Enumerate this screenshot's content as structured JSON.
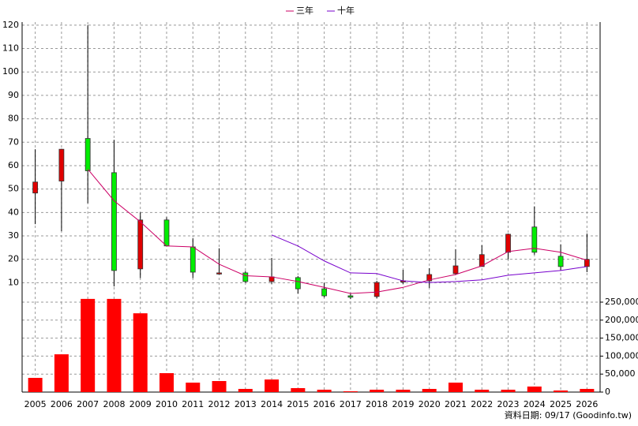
{
  "chart_data": [
    {
      "type": "candlestick",
      "categories": [
        "2005",
        "2006",
        "2007",
        "2008",
        "2009",
        "2010",
        "2011",
        "2012",
        "2013",
        "2014",
        "2015",
        "2016",
        "2017",
        "2018",
        "2019",
        "2020",
        "2021",
        "2022",
        "2023",
        "2024",
        "2025",
        "2026"
      ],
      "open": [
        48.3,
        53.4,
        71.6,
        57,
        15.9,
        36.8,
        25.3,
        13.9,
        14.2,
        10.5,
        12.2,
        7.4,
        4.4,
        4.1,
        10.5,
        10.8,
        13.9,
        16.9,
        23,
        33.8,
        21.3,
        16.9
      ],
      "high": [
        67,
        67.2,
        120,
        71,
        40,
        38,
        29,
        24.7,
        15,
        20.6,
        12.8,
        10,
        5.4,
        10.8,
        15.5,
        16.2,
        24.3,
        26,
        31,
        42.6,
        26.4,
        31
      ],
      "low": [
        35,
        32,
        44,
        8.4,
        12,
        25.7,
        12,
        13.5,
        10,
        9.5,
        5.4,
        3.7,
        3,
        3.4,
        9.5,
        7.8,
        13.5,
        17.6,
        20,
        22,
        15.2,
        14.5
      ],
      "close": [
        53,
        67,
        57.8,
        15.2,
        36.8,
        25.7,
        14.5,
        14.2,
        10.5,
        12.5,
        7.4,
        4.4,
        3.8,
        10.1,
        10.8,
        13.5,
        17.2,
        22,
        30.7,
        23,
        16.9,
        20
      ],
      "up_color": "#e00000",
      "down_color": "#00ee00",
      "lines": [
        {
          "name": "三年",
          "color": "#cc0066",
          "values": [
            null,
            null,
            58.5,
            45,
            36,
            25.7,
            25.3,
            17.9,
            13,
            12.5,
            10.5,
            8,
            5.4,
            6,
            8,
            11.2,
            13.5,
            17.2,
            23.3,
            24.7,
            23,
            19.6
          ]
        },
        {
          "name": "十年",
          "color": "#7700cc",
          "values": [
            null,
            null,
            null,
            null,
            null,
            null,
            null,
            null,
            null,
            30.4,
            25.7,
            19.3,
            14.2,
            13.9,
            10.8,
            10.1,
            10.5,
            11.2,
            13.2,
            14.2,
            15.2,
            16.9
          ]
        }
      ],
      "ylim": [
        1.7,
        121.3
      ],
      "yticks": [
        10,
        20,
        30,
        40,
        50,
        60,
        70,
        80,
        90,
        100,
        110,
        120
      ],
      "grid": true
    },
    {
      "type": "bar",
      "values": [
        39500,
        105000,
        259000,
        259000,
        219000,
        52600,
        26300,
        30700,
        8800,
        35000,
        11000,
        6600,
        2200,
        6600,
        6600,
        8800,
        26300,
        6600,
        6600,
        15400,
        4400,
        8800
      ],
      "color": "#ff0000",
      "ylim": [
        0,
        250000
      ],
      "yticks": [
        0,
        {
          "value": 50000,
          "label": "50,000"
        },
        {
          "value": 100000,
          "label": "100,000"
        },
        {
          "value": 150000,
          "label": "150,000"
        },
        {
          "value": 200000,
          "label": "200,000"
        },
        {
          "value": 250000,
          "label": "250,000"
        }
      ],
      "grid": true
    }
  ],
  "footer": "資料日期: 09/17 (Goodinfo.tw)"
}
